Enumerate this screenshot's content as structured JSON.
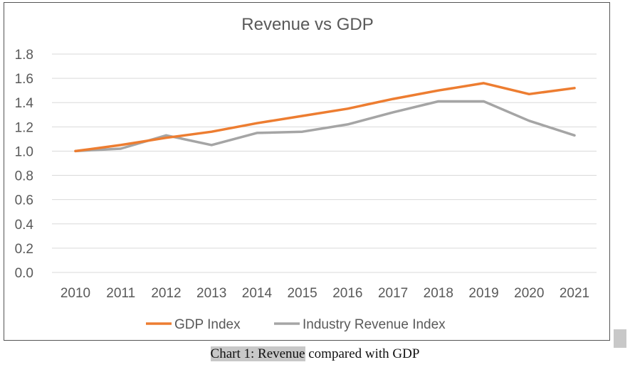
{
  "chart_data": {
    "type": "line",
    "title": "Revenue vs GDP",
    "x": [
      "2010",
      "2011",
      "2012",
      "2013",
      "2014",
      "2015",
      "2016",
      "2017",
      "2018",
      "2019",
      "2020",
      "2021"
    ],
    "y_ticks": [
      "0.0",
      "0.2",
      "0.4",
      "0.6",
      "0.8",
      "1.0",
      "1.2",
      "1.4",
      "1.6",
      "1.8"
    ],
    "ylim": [
      0,
      1.8
    ],
    "grid": true,
    "legend_position": "bottom",
    "series": [
      {
        "name": "GDP Index",
        "color": "#ed7d31",
        "values": [
          1.0,
          1.05,
          1.11,
          1.16,
          1.23,
          1.29,
          1.35,
          1.43,
          1.5,
          1.56,
          1.47,
          1.52
        ]
      },
      {
        "name": "Industry Revenue Index",
        "color": "#a5a5a5",
        "values": [
          1.0,
          1.02,
          1.13,
          1.05,
          1.15,
          1.16,
          1.22,
          1.32,
          1.41,
          1.41,
          1.25,
          1.13
        ]
      }
    ]
  },
  "caption": {
    "highlighted": "Chart 1: Revenue",
    "rest": " compared with GDP"
  }
}
